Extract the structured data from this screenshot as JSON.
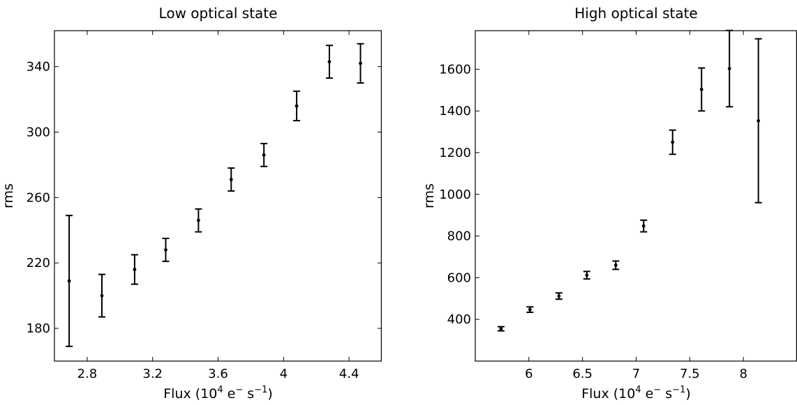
{
  "chart_data": [
    {
      "type": "scatter",
      "title": "Low optical state",
      "xlabel": "Flux (10^4 e^- s^-1)",
      "xlabel_parts": {
        "pre": "Flux (10",
        "exp1": "4",
        "mid1": " e",
        "exp2": "−",
        "mid2": " s",
        "exp3": "−1",
        "post": ")"
      },
      "ylabel": "rms",
      "xlim": [
        2.6,
        4.6
      ],
      "ylim": [
        160,
        362
      ],
      "xticks": [
        "2.8",
        "3.2",
        "3.6",
        "4",
        "4.4"
      ],
      "xtick_values": [
        2.8,
        3.2,
        3.6,
        4.0,
        4.4
      ],
      "yticks": [
        "180",
        "220",
        "260",
        "300",
        "340"
      ],
      "ytick_values": [
        180,
        220,
        260,
        300,
        340
      ],
      "grid": false,
      "series": [
        {
          "x": [
            2.69,
            2.89,
            3.09,
            3.28,
            3.48,
            3.68,
            3.88,
            4.08,
            4.28,
            4.47
          ],
          "y": [
            209,
            200,
            216,
            228,
            246,
            271,
            286,
            316,
            343,
            342
          ],
          "err_low": [
            40,
            13,
            9,
            7,
            7,
            7,
            7,
            9,
            10,
            12
          ],
          "err_high": [
            40,
            13,
            9,
            7,
            7,
            7,
            7,
            9,
            10,
            12
          ]
        }
      ]
    },
    {
      "type": "scatter",
      "title": "High optical state",
      "xlabel": "Flux (10^4 e^- s^-1)",
      "xlabel_parts": {
        "pre": "Flux (10",
        "exp1": "4",
        "mid1": " e",
        "exp2": "−",
        "mid2": " s",
        "exp3": "−1",
        "post": ")"
      },
      "ylabel": "rms",
      "xlim": [
        5.5,
        8.5
      ],
      "ylim": [
        200,
        1785
      ],
      "xticks": [
        "6",
        "6.5",
        "7",
        "7.5",
        "8"
      ],
      "xtick_values": [
        6,
        6.5,
        7,
        7.5,
        8
      ],
      "yticks": [
        "400",
        "600",
        "800",
        "1000",
        "1200",
        "1400",
        "1600"
      ],
      "ytick_values": [
        400,
        600,
        800,
        1000,
        1200,
        1400,
        1600
      ],
      "grid": false,
      "series": [
        {
          "x": [
            5.74,
            6.01,
            6.28,
            6.54,
            6.81,
            7.07,
            7.34,
            7.61,
            7.87,
            8.14
          ],
          "y": [
            355,
            447,
            512,
            612,
            660,
            848,
            1250,
            1503,
            1603,
            1353
          ],
          "err_low": [
            10,
            13,
            15,
            18,
            20,
            28,
            58,
            103,
            183,
            393
          ],
          "err_high": [
            10,
            13,
            15,
            18,
            20,
            28,
            58,
            103,
            183,
            393
          ]
        }
      ]
    }
  ]
}
